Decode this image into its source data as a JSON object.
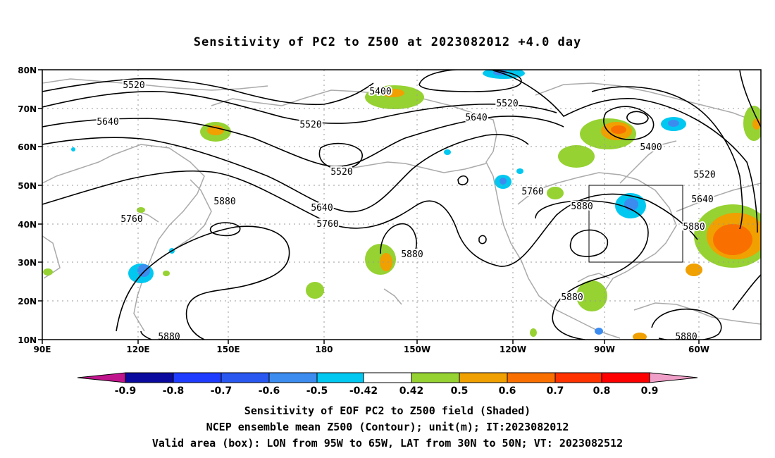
{
  "title": "Sensitivity of PC2 to Z500 at 2023082012 +4.0 day",
  "lat_labels": [
    "80N",
    "70N",
    "60N",
    "50N",
    "40N",
    "30N",
    "20N",
    "10N"
  ],
  "lon_labels": [
    "90E",
    "120E",
    "150E",
    "180",
    "150W",
    "120W",
    "90W",
    "60W"
  ],
  "contour_labels": [
    "5520",
    "5400",
    "5520",
    "5640",
    "5520",
    "5640",
    "5520",
    "5400",
    "5520",
    "5640",
    "5760",
    "5880",
    "5640",
    "5760",
    "5760",
    "5880",
    "5880",
    "5880",
    "5880",
    "5880",
    "5880"
  ],
  "colorbar": {
    "labels": [
      "-0.9",
      "-0.8",
      "-0.7",
      "-0.6",
      "-0.5",
      "-0.42",
      "0.42",
      "0.5",
      "0.6",
      "0.7",
      "0.8",
      "0.9"
    ],
    "colors": [
      "#c0148c",
      "#0a0a9e",
      "#1e3cff",
      "#2858f0",
      "#3c8cf0",
      "#00c8f0",
      "#ffffff",
      "#96d232",
      "#f0a000",
      "#fa7000",
      "#ff3200",
      "#ff0000",
      "#f0a0c8"
    ]
  },
  "footer": {
    "line1": "Sensitivity of EOF PC2 to Z500 field (Shaded)",
    "line2": "NCEP ensemble mean Z500 (Contour); unit(m); IT:2023082012",
    "line3": "Valid area (box): LON from 95W to 65W, LAT from 30N to 50N; VT: 2023082512"
  }
}
